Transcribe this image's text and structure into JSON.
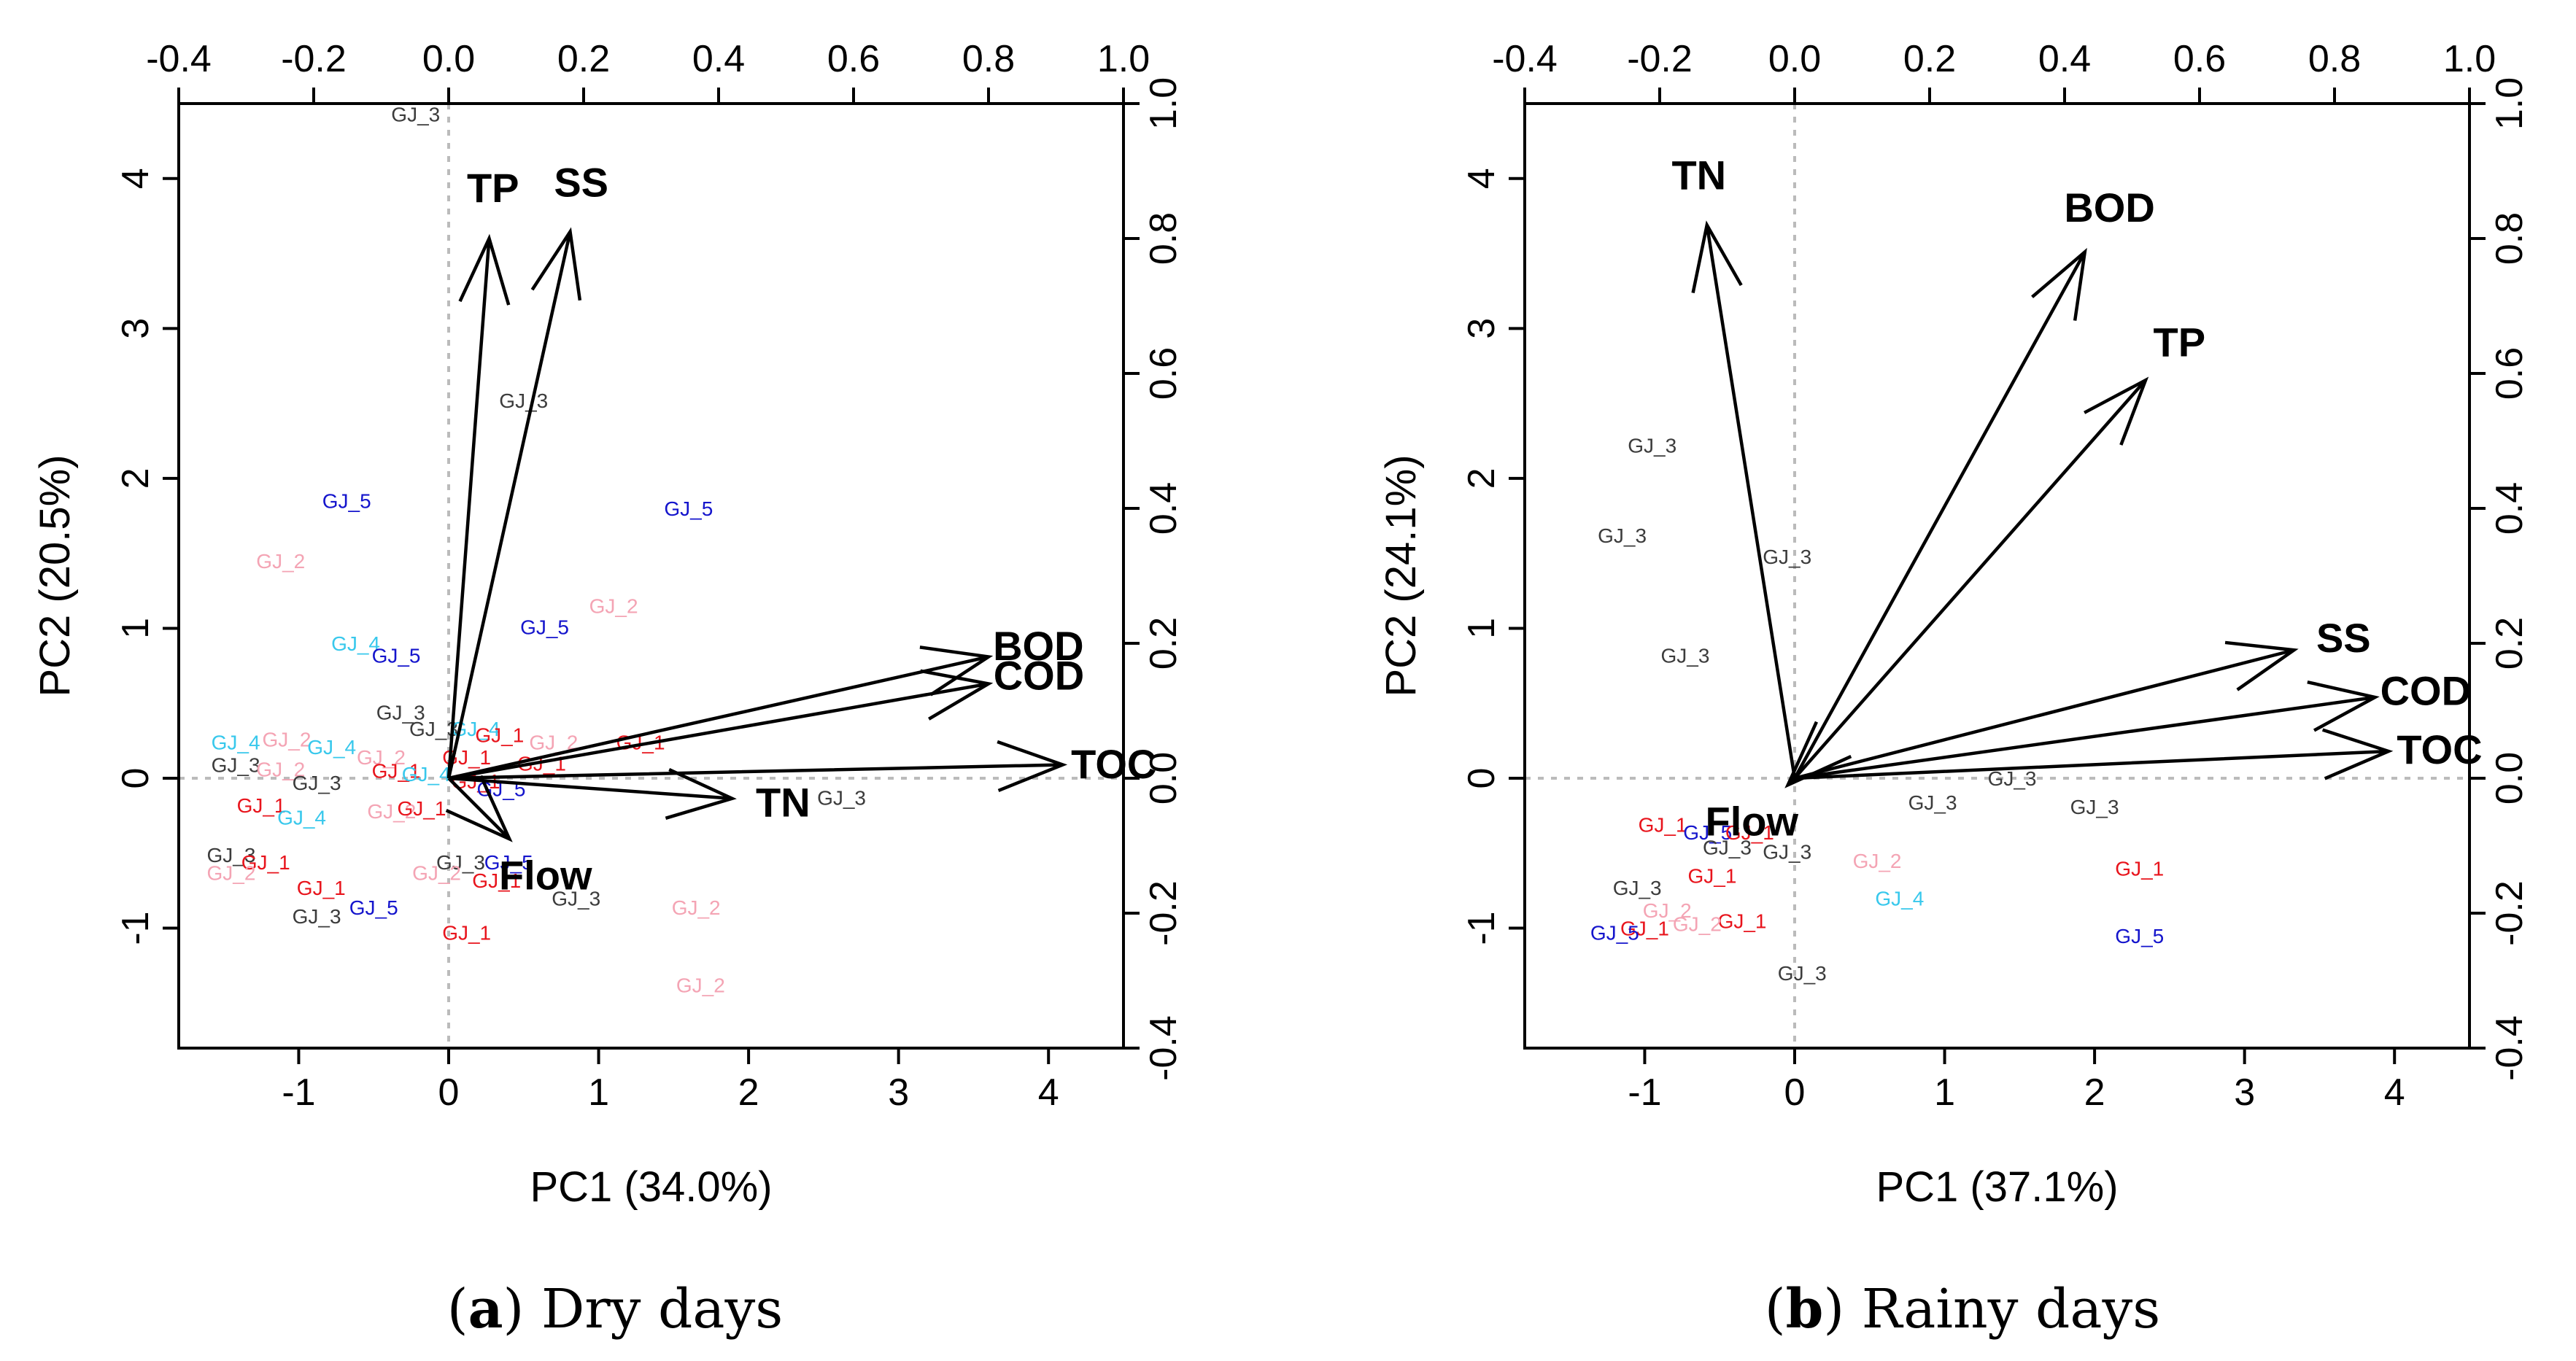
{
  "figure": {
    "panels": [
      {
        "caption_letter": "a",
        "caption_text": "Dry days",
        "chart_data": {
          "type": "scatter",
          "subtype": "biplot",
          "title": "",
          "xlabel": "PC1 (34.0%)",
          "ylabel": "PC2 (20.5%)",
          "xlim": [
            -1.8,
            4.5
          ],
          "ylim": [
            -1.8,
            4.5
          ],
          "xticks": [
            -1,
            0,
            1,
            2,
            3,
            4
          ],
          "yticks": [
            -1,
            0,
            1,
            2,
            3,
            4
          ],
          "secondary_xlim": [
            -0.4,
            1.0
          ],
          "secondary_ylim": [
            -0.4,
            1.0
          ],
          "secondary_ticks": [
            "-0.4",
            "-0.2",
            "0.0",
            "0.2",
            "0.4",
            "0.6",
            "0.8",
            "1.0"
          ],
          "loadings": [
            {
              "name": "TP",
              "x": 0.06,
              "y": 0.8
            },
            {
              "name": "SS",
              "x": 0.18,
              "y": 0.81
            },
            {
              "name": "BOD",
              "x": 0.8,
              "y": 0.18
            },
            {
              "name": "COD",
              "x": 0.8,
              "y": 0.14
            },
            {
              "name": "TOC",
              "x": 0.91,
              "y": 0.02
            },
            {
              "name": "TN",
              "x": 0.42,
              "y": -0.03
            },
            {
              "name": "Flow",
              "x": 0.09,
              "y": -0.09
            }
          ],
          "observations": [
            {
              "label": "GJ_3",
              "x": -0.22,
              "y": 4.43
            },
            {
              "label": "GJ_3",
              "x": 0.5,
              "y": 2.52
            },
            {
              "label": "GJ_5",
              "x": -0.68,
              "y": 1.85
            },
            {
              "label": "GJ_5",
              "x": 1.6,
              "y": 1.8
            },
            {
              "label": "GJ_2",
              "x": -1.12,
              "y": 1.45
            },
            {
              "label": "GJ_2",
              "x": 1.1,
              "y": 1.15
            },
            {
              "label": "GJ_5",
              "x": 0.64,
              "y": 1.01
            },
            {
              "label": "GJ_4",
              "x": -0.62,
              "y": 0.9
            },
            {
              "label": "GJ_5",
              "x": -0.35,
              "y": 0.82
            },
            {
              "label": "GJ_3",
              "x": -0.32,
              "y": 0.44
            },
            {
              "label": "GJ_3",
              "x": -0.1,
              "y": 0.33
            },
            {
              "label": "GJ_4",
              "x": 0.18,
              "y": 0.33
            },
            {
              "label": "GJ_1",
              "x": 0.34,
              "y": 0.29
            },
            {
              "label": "GJ_2",
              "x": 0.7,
              "y": 0.24
            },
            {
              "label": "GJ_1",
              "x": 1.28,
              "y": 0.24
            },
            {
              "label": "GJ_4",
              "x": -1.42,
              "y": 0.24
            },
            {
              "label": "GJ_2",
              "x": -1.08,
              "y": 0.26
            },
            {
              "label": "GJ_4",
              "x": -0.78,
              "y": 0.21
            },
            {
              "label": "GJ_3",
              "x": -1.42,
              "y": 0.09
            },
            {
              "label": "GJ_2",
              "x": -1.12,
              "y": 0.06
            },
            {
              "label": "GJ_2",
              "x": -0.45,
              "y": 0.14
            },
            {
              "label": "GJ_1",
              "x": 0.12,
              "y": 0.14
            },
            {
              "label": "GJ_1",
              "x": 0.62,
              "y": 0.1
            },
            {
              "label": "GJ_1",
              "x": -0.35,
              "y": 0.05
            },
            {
              "label": "GJ_4",
              "x": -0.15,
              "y": 0.03
            },
            {
              "label": "GJ_3",
              "x": -0.88,
              "y": -0.03
            },
            {
              "label": "GJ_1",
              "x": 0.18,
              "y": -0.02
            },
            {
              "label": "GJ_5",
              "x": 0.35,
              "y": -0.07
            },
            {
              "label": "GJ_3",
              "x": 2.62,
              "y": -0.13
            },
            {
              "label": "GJ_1",
              "x": -1.25,
              "y": -0.18
            },
            {
              "label": "GJ_2",
              "x": -0.38,
              "y": -0.22
            },
            {
              "label": "GJ_1",
              "x": -0.18,
              "y": -0.2
            },
            {
              "label": "GJ_4",
              "x": -0.98,
              "y": -0.26
            },
            {
              "label": "GJ_3",
              "x": -1.45,
              "y": -0.51
            },
            {
              "label": "GJ_1",
              "x": -1.22,
              "y": -0.56
            },
            {
              "label": "GJ_2",
              "x": -1.45,
              "y": -0.63
            },
            {
              "label": "GJ_3",
              "x": 0.08,
              "y": -0.56
            },
            {
              "label": "GJ_5",
              "x": 0.4,
              "y": -0.56
            },
            {
              "label": "GJ_2",
              "x": -0.08,
              "y": -0.63
            },
            {
              "label": "GJ_1",
              "x": 0.32,
              "y": -0.68
            },
            {
              "label": "GJ_1",
              "x": -0.85,
              "y": -0.73
            },
            {
              "label": "GJ_3",
              "x": 0.85,
              "y": -0.8
            },
            {
              "label": "GJ_5",
              "x": -0.5,
              "y": -0.86
            },
            {
              "label": "GJ_2",
              "x": 1.65,
              "y": -0.86
            },
            {
              "label": "GJ_3",
              "x": -0.88,
              "y": -0.92
            },
            {
              "label": "GJ_1",
              "x": 0.12,
              "y": -1.03
            },
            {
              "label": "GJ_2",
              "x": 1.68,
              "y": -1.38
            }
          ]
        }
      },
      {
        "caption_letter": "b",
        "caption_text": "Rainy days",
        "chart_data": {
          "type": "scatter",
          "subtype": "biplot",
          "title": "",
          "xlabel": "PC1 (37.1%)",
          "ylabel": "PC2 (24.1%)",
          "xlim": [
            -1.8,
            4.5
          ],
          "ylim": [
            -1.8,
            4.5
          ],
          "xticks": [
            -1,
            0,
            1,
            2,
            3,
            4
          ],
          "yticks": [
            -1,
            0,
            1,
            2,
            3,
            4
          ],
          "secondary_xlim": [
            -0.4,
            1.0
          ],
          "secondary_ylim": [
            -0.4,
            1.0
          ],
          "secondary_ticks": [
            "-0.4",
            "-0.2",
            "0.0",
            "0.2",
            "0.4",
            "0.6",
            "0.8",
            "1.0"
          ],
          "loadings": [
            {
              "name": "TN",
              "x": -0.13,
              "y": 0.82
            },
            {
              "name": "BOD",
              "x": 0.43,
              "y": 0.78
            },
            {
              "name": "TP",
              "x": 0.52,
              "y": 0.59
            },
            {
              "name": "SS",
              "x": 0.74,
              "y": 0.19
            },
            {
              "name": "COD",
              "x": 0.86,
              "y": 0.12
            },
            {
              "name": "TOC",
              "x": 0.88,
              "y": 0.04
            },
            {
              "name": "Flow",
              "x": -0.01,
              "y": -0.01
            }
          ],
          "observations": [
            {
              "label": "GJ_3",
              "x": -0.95,
              "y": 2.22
            },
            {
              "label": "GJ_3",
              "x": -1.15,
              "y": 1.62
            },
            {
              "label": "GJ_3",
              "x": -0.05,
              "y": 1.48
            },
            {
              "label": "GJ_3",
              "x": -0.73,
              "y": 0.82
            },
            {
              "label": "GJ_3",
              "x": 1.45,
              "y": 0.0
            },
            {
              "label": "GJ_3",
              "x": 0.92,
              "y": -0.16
            },
            {
              "label": "GJ_3",
              "x": 2.0,
              "y": -0.19
            },
            {
              "label": "GJ_1",
              "x": -0.88,
              "y": -0.31
            },
            {
              "label": "GJ_5",
              "x": -0.58,
              "y": -0.36
            },
            {
              "label": "GJ_1",
              "x": -0.3,
              "y": -0.36
            },
            {
              "label": "GJ_3",
              "x": -0.45,
              "y": -0.46
            },
            {
              "label": "GJ_3",
              "x": -0.05,
              "y": -0.49
            },
            {
              "label": "GJ_2",
              "x": 0.55,
              "y": -0.55
            },
            {
              "label": "GJ_1",
              "x": 2.3,
              "y": -0.6
            },
            {
              "label": "GJ_1",
              "x": -0.55,
              "y": -0.65
            },
            {
              "label": "GJ_3",
              "x": -1.05,
              "y": -0.73
            },
            {
              "label": "GJ_4",
              "x": 0.7,
              "y": -0.8
            },
            {
              "label": "GJ_2",
              "x": -0.85,
              "y": -0.88
            },
            {
              "label": "GJ_1",
              "x": -0.35,
              "y": -0.95
            },
            {
              "label": "GJ_2",
              "x": -0.65,
              "y": -0.97
            },
            {
              "label": "GJ_1",
              "x": -1.0,
              "y": -1.0
            },
            {
              "label": "GJ_5",
              "x": -1.2,
              "y": -1.03
            },
            {
              "label": "GJ_5",
              "x": 2.3,
              "y": -1.05
            },
            {
              "label": "GJ_3",
              "x": 0.05,
              "y": -1.3
            }
          ]
        }
      }
    ]
  },
  "colors": {
    "GJ_1": "#e8141c",
    "GJ_2": "#f4a4b4",
    "GJ_3": "#3c3c3c",
    "GJ_4": "#38c8ec",
    "GJ_5": "#1414cc",
    "axis": "#000000",
    "zero_line": "#bbbbbb"
  }
}
